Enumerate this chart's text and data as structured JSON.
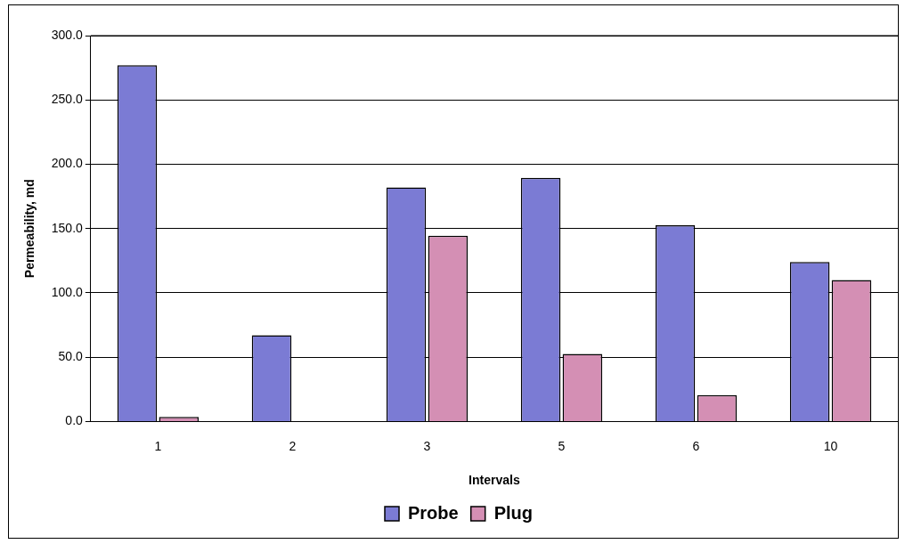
{
  "chart_data": {
    "type": "bar",
    "xlabel": "Intervals",
    "ylabel": "Permeability, md",
    "categories": [
      "1",
      "2",
      "3",
      "5",
      "6",
      "10"
    ],
    "series": [
      {
        "name": "Probe",
        "color": "#7b7bd4",
        "values": [
          277,
          67,
          182,
          189.5,
          152.5,
          124
        ]
      },
      {
        "name": "Plug",
        "color": "#d48fb4",
        "values": [
          3.5,
          0,
          144.5,
          52.5,
          20.5,
          110
        ]
      }
    ],
    "ylim": [
      0,
      300
    ],
    "yticks": [
      {
        "value": 0,
        "label": "0.0"
      },
      {
        "value": 50,
        "label": "50.0"
      },
      {
        "value": 100,
        "label": "100.0"
      },
      {
        "value": 150,
        "label": "150.0"
      },
      {
        "value": 200,
        "label": "200.0"
      },
      {
        "value": 250,
        "label": "250.0"
      },
      {
        "value": 300,
        "label": "300.0"
      }
    ],
    "grid": "y",
    "legend": "bottom"
  }
}
